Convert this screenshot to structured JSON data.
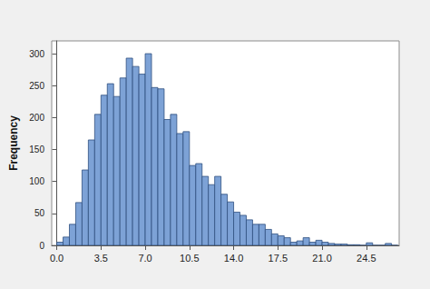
{
  "chart_data": {
    "type": "histogram",
    "y_label": "Frequency",
    "bins": [
      0,
      0.5,
      1,
      1.5,
      2,
      2.5,
      3,
      3.5,
      4,
      4.5,
      5,
      5.5,
      6,
      6.5,
      7,
      7.5,
      8,
      8.5,
      9,
      9.5,
      10,
      10.5,
      11,
      11.5,
      12,
      12.5,
      13,
      13.5,
      14,
      14.5,
      15,
      15.5,
      16,
      16.5,
      17,
      17.5,
      18,
      18.5,
      19,
      19.5,
      20,
      20.5,
      21,
      21.5,
      22,
      22.5,
      23,
      23.5,
      24,
      24.5,
      25,
      25.5,
      26,
      26.5,
      27
    ],
    "values": [
      5,
      13,
      33,
      67,
      118,
      165,
      205,
      235,
      253,
      233,
      262,
      293,
      280,
      268,
      300,
      247,
      245,
      197,
      205,
      175,
      178,
      125,
      128,
      108,
      95,
      108,
      80,
      68,
      52,
      47,
      40,
      33,
      33,
      25,
      18,
      15,
      12,
      5,
      7,
      12,
      5,
      8,
      5,
      3,
      2,
      2,
      1,
      1,
      0,
      4,
      0,
      0,
      3,
      0
    ],
    "color": "#7da2d6",
    "xlim": [
      -0.4,
      27.1
    ],
    "xticks": [
      {
        "value": 0,
        "label": "0.0"
      },
      3.5,
      {
        "value": 7,
        "label": "7.0"
      },
      10.5,
      {
        "value": 14,
        "label": "14.0"
      },
      17.5,
      {
        "value": 21,
        "label": "21.0"
      },
      24.5
    ],
    "ylim": [
      0,
      320
    ],
    "yticks": [
      0,
      50,
      100,
      150,
      200,
      250,
      300
    ],
    "grid": false
  }
}
